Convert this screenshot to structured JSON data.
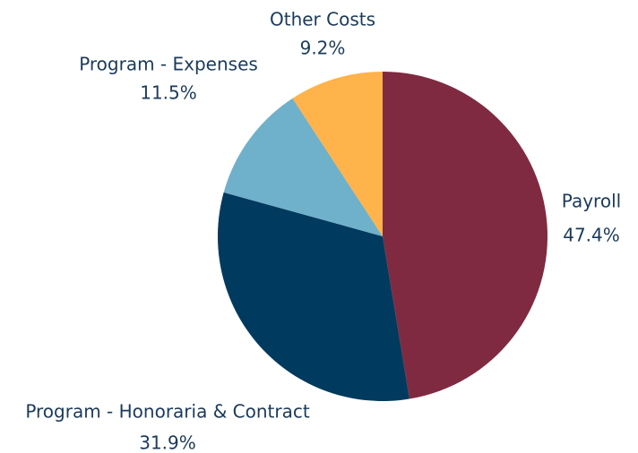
{
  "chart_data": {
    "type": "pie",
    "categories": [
      "Payroll",
      "Program - Honoraria & Contract",
      "Program - Expenses",
      "Other Costs"
    ],
    "values": [
      47.4,
      31.9,
      11.5,
      9.2
    ],
    "value_labels": [
      "47.4%",
      "31.9%",
      "11.5%",
      "9.2%"
    ],
    "colors": [
      "#7f2a40",
      "#003a5e",
      "#6fb0ca",
      "#ffb34a"
    ]
  }
}
